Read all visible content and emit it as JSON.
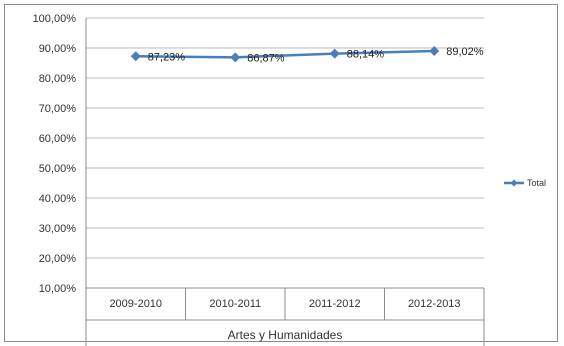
{
  "chart_data": {
    "type": "line",
    "title": "",
    "xlabel": "",
    "ylabel": "",
    "group_label": "Artes y Humanidades",
    "categories": [
      "2009-2010",
      "2010-2011",
      "2011-2012",
      "2012-2013"
    ],
    "series": [
      {
        "name": "Total",
        "values": [
          87.23,
          86.87,
          88.14,
          89.02
        ],
        "labels": [
          "87,23%",
          "86,87%",
          "88,14%",
          "89,02%"
        ],
        "color": "#4a7ebb"
      }
    ],
    "ylim": [
      10,
      100
    ],
    "y_ticks": [
      10,
      20,
      30,
      40,
      50,
      60,
      70,
      80,
      90,
      100
    ],
    "y_tick_labels": [
      "10,00%",
      "20,00%",
      "30,00%",
      "40,00%",
      "50,00%",
      "60,00%",
      "70,00%",
      "80,00%",
      "90,00%",
      "100,00%"
    ],
    "grid": true,
    "legend_position": "right"
  }
}
